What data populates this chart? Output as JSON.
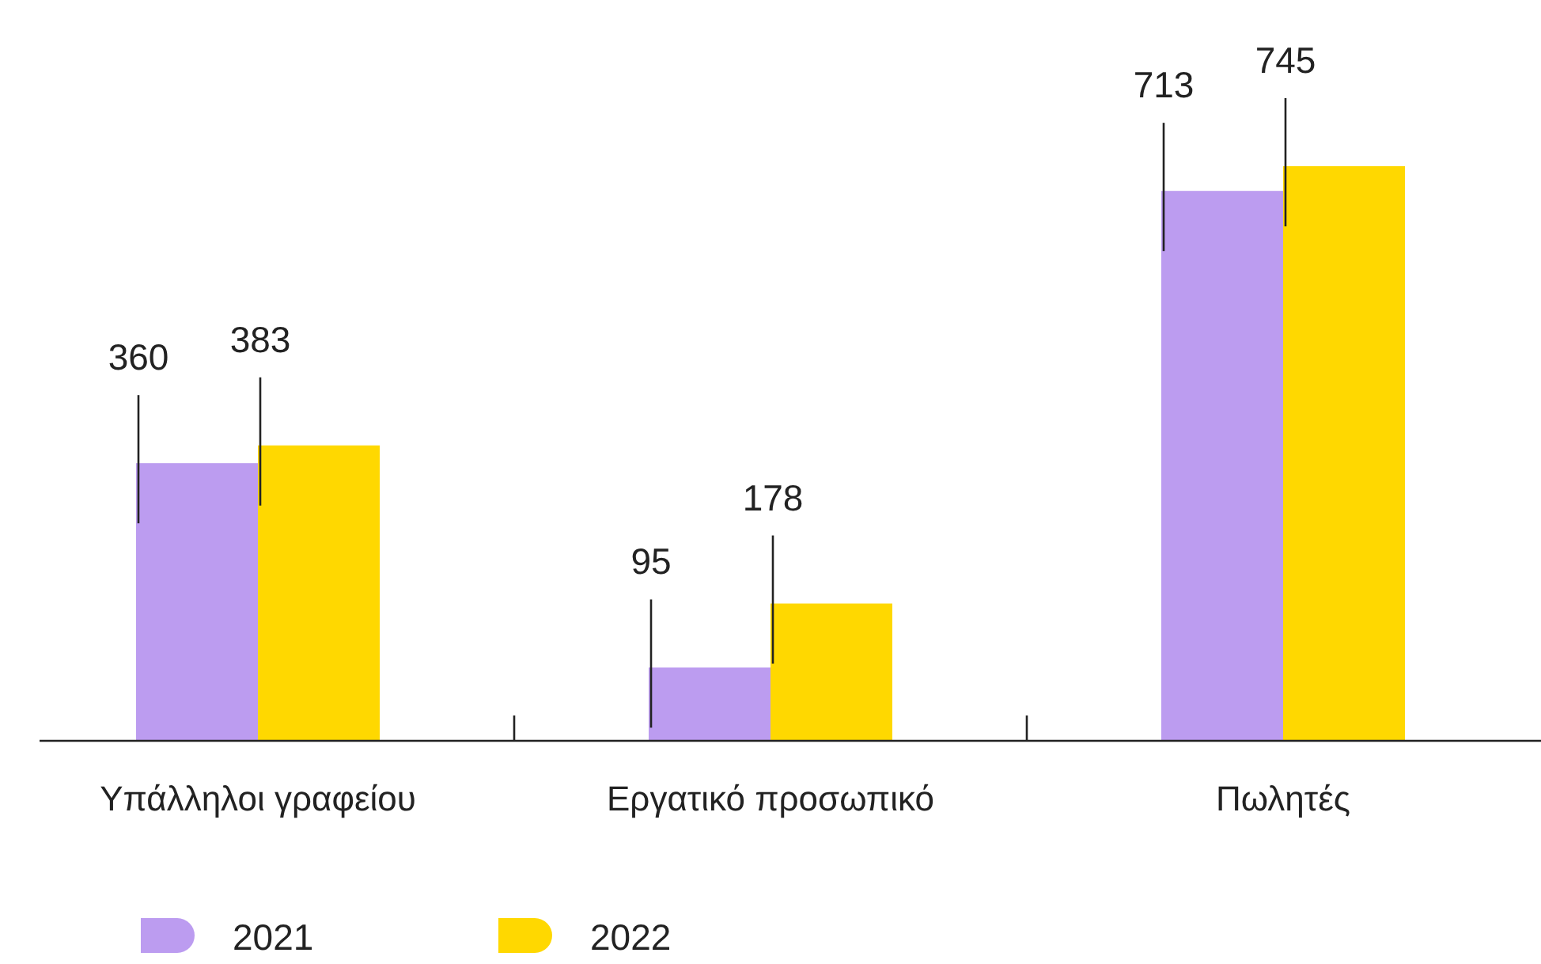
{
  "chart_data": {
    "type": "bar",
    "categories": [
      "Υπάλληλοι γραφείου",
      "Εργατικό προσωπικό",
      "Πωλητές"
    ],
    "series": [
      {
        "name": "2021",
        "color": "#bc9cf0",
        "values": [
          360,
          95,
          713
        ]
      },
      {
        "name": "2022",
        "color": "#ffd800",
        "values": [
          383,
          178,
          745
        ]
      }
    ],
    "data_labels": true,
    "legend": "bottom left"
  }
}
